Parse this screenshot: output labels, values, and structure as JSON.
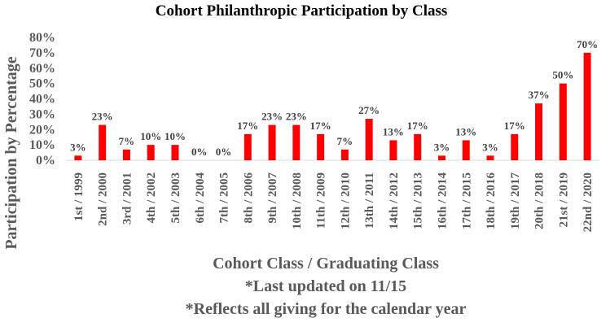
{
  "chart_data": {
    "type": "bar",
    "title": "Cohort Philanthropic Participation by Class",
    "xlabel": "Cohort Class / Graduating Class",
    "ylabel": "Participation by Percentage",
    "notes": [
      "*Last updated on 11/15",
      "*Reflects all giving for the calendar  year"
    ],
    "categories": [
      "1st / 1999",
      "2nd / 2000",
      "3rd / 2001",
      "4th / 2002",
      "5th / 2003",
      "6th / 2004",
      "7th / 2005",
      "8th / 2006",
      "9th / 2007",
      "10th / 2008",
      "11th / 2009",
      "12th / 2010",
      "13th / 2011",
      "14th / 2012",
      "15th / 2013",
      "16th / 2014",
      "17th / 2015",
      "18th / 2016",
      "19th / 2017",
      "20th / 2018",
      "21st / 2019",
      "22nd / 2020"
    ],
    "values": [
      3,
      23,
      7,
      10,
      10,
      0,
      0,
      17,
      23,
      23,
      17,
      7,
      27,
      13,
      17,
      3,
      13,
      3,
      17,
      37,
      50,
      70
    ],
    "data_labels": [
      "3%",
      "23%",
      "7%",
      "10%",
      "10%",
      "0%",
      "0%",
      "17%",
      "23%",
      "23%",
      "17%",
      "7%",
      "27%",
      "13%",
      "17%",
      "3%",
      "13%",
      "3%",
      "17%",
      "37%",
      "50%",
      "70%"
    ],
    "yticks": [
      "0%",
      "10%",
      "20%",
      "30%",
      "40%",
      "50%",
      "60%",
      "70%",
      "80%"
    ],
    "ylim": [
      0,
      80
    ],
    "bar_color": "#ff0000",
    "grid": false,
    "legend": "none"
  }
}
